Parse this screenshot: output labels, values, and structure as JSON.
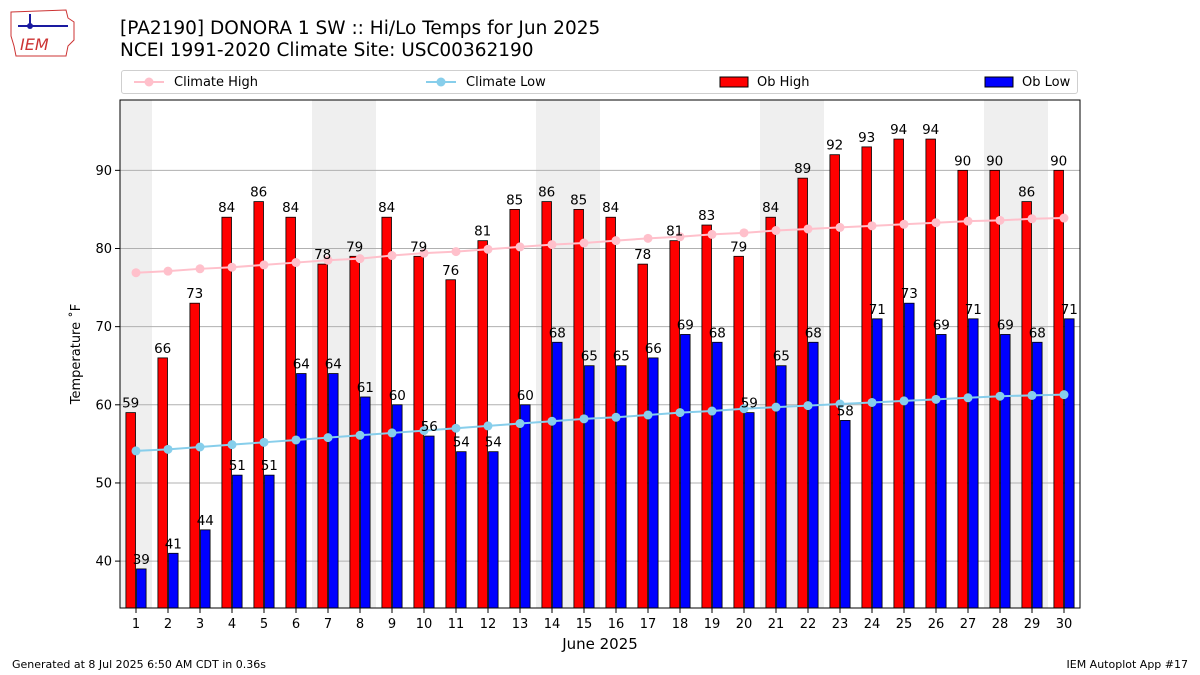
{
  "header": {
    "logo_text": "IEM",
    "title_line1": "[PA2190] DONORA 1 SW :: Hi/Lo Temps for Jun 2025",
    "title_line2": "NCEI 1991-2020 Climate Site: USC00362190"
  },
  "legend": {
    "climate_high": "Climate High",
    "climate_low": "Climate Low",
    "ob_high": "Ob High",
    "ob_low": "Ob Low"
  },
  "footer": {
    "generated": "Generated at 8 Jul 2025 6:50 AM CDT in 0.36s",
    "app": "IEM Autoplot App #17"
  },
  "colors": {
    "ob_high": "#ff0000",
    "ob_low": "#0000ff",
    "climate_high": "#ffc0cb",
    "climate_low": "#87ceeb",
    "weekend_shade": "#efefef",
    "grid": "#b0b0b0"
  },
  "chart_data": {
    "type": "bar",
    "xlabel": "June 2025",
    "ylabel": "Temperature ˚F",
    "ylim": [
      34,
      99
    ],
    "yticks": [
      40,
      50,
      60,
      70,
      80,
      90
    ],
    "grid": "horizontal",
    "legend_position": "top",
    "shaded_weekend_days": [
      1,
      7,
      8,
      14,
      15,
      21,
      22,
      28,
      29
    ],
    "categories": [
      1,
      2,
      3,
      4,
      5,
      6,
      7,
      8,
      9,
      10,
      11,
      12,
      13,
      14,
      15,
      16,
      17,
      18,
      19,
      20,
      21,
      22,
      23,
      24,
      25,
      26,
      27,
      28,
      29,
      30
    ],
    "series": [
      {
        "name": "Ob High",
        "kind": "bar",
        "values": [
          59,
          66,
          73,
          84,
          86,
          84,
          78,
          79,
          84,
          79,
          76,
          81,
          85,
          86,
          85,
          84,
          78,
          81,
          83,
          79,
          84,
          89,
          92,
          93,
          94,
          94,
          90,
          90,
          86,
          90
        ]
      },
      {
        "name": "Ob Low",
        "kind": "bar",
        "values": [
          39,
          41,
          44,
          51,
          51,
          64,
          64,
          61,
          60,
          56,
          54,
          54,
          60,
          68,
          65,
          65,
          66,
          69,
          68,
          59,
          65,
          68,
          58,
          71,
          73,
          69,
          71,
          69,
          68,
          71
        ]
      },
      {
        "name": "Climate High",
        "kind": "line",
        "values": [
          76.9,
          77.1,
          77.4,
          77.6,
          77.9,
          78.2,
          78.5,
          78.7,
          79.1,
          79.4,
          79.6,
          79.9,
          80.2,
          80.5,
          80.7,
          81.0,
          81.3,
          81.5,
          81.8,
          82.0,
          82.3,
          82.5,
          82.7,
          82.9,
          83.1,
          83.3,
          83.5,
          83.6,
          83.8,
          83.9
        ]
      },
      {
        "name": "Climate Low",
        "kind": "line",
        "values": [
          54.1,
          54.3,
          54.6,
          54.9,
          55.2,
          55.5,
          55.8,
          56.1,
          56.4,
          56.7,
          57.0,
          57.3,
          57.6,
          57.9,
          58.2,
          58.4,
          58.7,
          59.0,
          59.2,
          59.5,
          59.7,
          59.9,
          60.1,
          60.3,
          60.5,
          60.7,
          60.9,
          61.1,
          61.2,
          61.3
        ]
      }
    ]
  }
}
